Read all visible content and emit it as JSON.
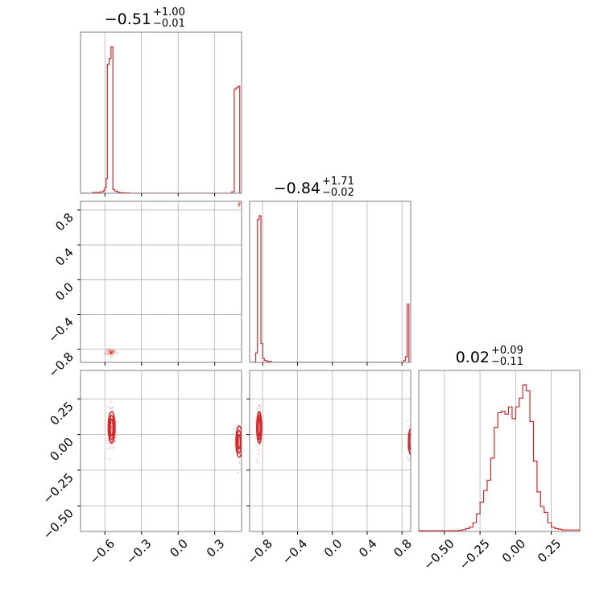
{
  "chart_data": {
    "type": "corner",
    "color": "#d62728",
    "params": [
      {
        "range": [
          -0.8,
          0.52
        ],
        "ticks": [
          -0.6,
          -0.3,
          0.0,
          0.3
        ],
        "tick_labels": [
          "−0.6",
          "−0.3",
          "0.0",
          "0.3"
        ],
        "title": {
          "median": "−0.51",
          "plus": "+1.00",
          "minus": "−0.01"
        }
      },
      {
        "range": [
          -0.95,
          0.9
        ],
        "ticks": [
          -0.8,
          -0.4,
          0.0,
          0.4,
          0.8
        ],
        "tick_labels": [
          "−0.8",
          "−0.4",
          "0.0",
          "0.4",
          "0.8"
        ],
        "title": {
          "median": "−0.84",
          "plus": "+1.71",
          "minus": "−0.02"
        }
      },
      {
        "range": [
          -0.68,
          0.45
        ],
        "ticks": [
          -0.5,
          -0.25,
          0.0,
          0.25
        ],
        "tick_labels": [
          "−0.50",
          "−0.25",
          "0.00",
          "0.25"
        ],
        "title": {
          "median": "0.02",
          "plus": "+0.09",
          "minus": "−0.11"
        }
      }
    ],
    "hist_0": {
      "edges": [
        -0.8,
        -0.7,
        -0.64,
        -0.61,
        -0.6,
        -0.59,
        -0.58,
        -0.565,
        -0.55,
        -0.535,
        -0.52,
        -0.5,
        -0.48,
        -0.45,
        -0.4,
        0.44,
        0.46,
        0.475,
        0.49,
        0.505,
        0.52
      ],
      "heights": [
        0.0,
        0.005,
        0.01,
        0.02,
        0.04,
        0.1,
        0.88,
        0.92,
        1.0,
        0.025,
        0.015,
        0.008,
        0.004,
        0.002,
        0.0,
        0.01,
        0.71,
        0.72,
        0.73,
        0.0
      ]
    },
    "hist_1": {
      "edges": [
        -0.95,
        -0.88,
        -0.86,
        -0.84,
        -0.82,
        -0.8,
        -0.78,
        -0.75,
        -0.7,
        0.82,
        0.84,
        0.86,
        0.88,
        0.9
      ],
      "heights": [
        0.0,
        0.05,
        0.76,
        0.78,
        0.1,
        0.02,
        0.01,
        0.005,
        0.0,
        0.01,
        0.03,
        0.31,
        0.0
      ]
    },
    "hist_2": {
      "edges": [
        -0.68,
        -0.4,
        -0.375,
        -0.35,
        -0.325,
        -0.3,
        -0.275,
        -0.25,
        -0.225,
        -0.2,
        -0.175,
        -0.15,
        -0.125,
        -0.1,
        -0.075,
        -0.05,
        -0.025,
        0.0,
        0.025,
        0.05,
        0.075,
        0.1,
        0.125,
        0.15,
        0.175,
        0.2,
        0.225,
        0.25,
        0.275,
        0.3,
        0.325,
        0.45
      ],
      "heights": [
        0.005,
        0.008,
        0.012,
        0.02,
        0.03,
        0.06,
        0.12,
        0.2,
        0.28,
        0.35,
        0.5,
        0.71,
        0.81,
        0.82,
        0.8,
        0.85,
        0.77,
        0.85,
        0.91,
        1.0,
        0.96,
        0.75,
        0.48,
        0.27,
        0.17,
        0.13,
        0.06,
        0.03,
        0.02,
        0.015,
        0.01
      ]
    },
    "scatter_10": {
      "clusters": [
        {
          "cx": -0.55,
          "cy": -0.835,
          "sx": 0.02,
          "sy": 0.02,
          "n": 45
        },
        {
          "cx": 0.5,
          "cy": 0.87,
          "sx": 0.01,
          "sy": 0.015,
          "n": 12
        }
      ]
    },
    "scatter_20": {
      "clusters": [
        {
          "cx": -0.545,
          "cy": 0.05,
          "sx": 0.015,
          "sy": 0.08,
          "n": 70
        },
        {
          "cx": 0.495,
          "cy": -0.05,
          "sx": 0.012,
          "sy": 0.07,
          "n": 35
        }
      ],
      "contours": [
        {
          "cx": -0.545,
          "cy": 0.05,
          "rx": 0.012,
          "ry": 0.06
        },
        {
          "cx": -0.545,
          "cy": 0.05,
          "rx": 0.02,
          "ry": 0.085
        },
        {
          "cx": -0.545,
          "cy": 0.05,
          "rx": 0.028,
          "ry": 0.11
        },
        {
          "cx": 0.5,
          "cy": -0.05,
          "rx": 0.01,
          "ry": 0.05
        },
        {
          "cx": 0.5,
          "cy": -0.05,
          "rx": 0.018,
          "ry": 0.08
        },
        {
          "cx": 0.5,
          "cy": -0.05,
          "rx": 0.026,
          "ry": 0.11
        }
      ]
    },
    "scatter_21": {
      "clusters": [
        {
          "cx": -0.84,
          "cy": 0.05,
          "sx": 0.015,
          "sy": 0.08,
          "n": 70
        },
        {
          "cx": 0.88,
          "cy": -0.05,
          "sx": 0.01,
          "sy": 0.07,
          "n": 20
        }
      ],
      "contours": [
        {
          "cx": -0.84,
          "cy": 0.05,
          "rx": 0.012,
          "ry": 0.06
        },
        {
          "cx": -0.84,
          "cy": 0.05,
          "rx": 0.02,
          "ry": 0.085
        },
        {
          "cx": -0.84,
          "cy": 0.05,
          "rx": 0.028,
          "ry": 0.11
        },
        {
          "cx": 0.9,
          "cy": -0.05,
          "rx": 0.015,
          "ry": 0.06
        },
        {
          "cx": 0.9,
          "cy": -0.05,
          "rx": 0.025,
          "ry": 0.09
        }
      ]
    }
  }
}
